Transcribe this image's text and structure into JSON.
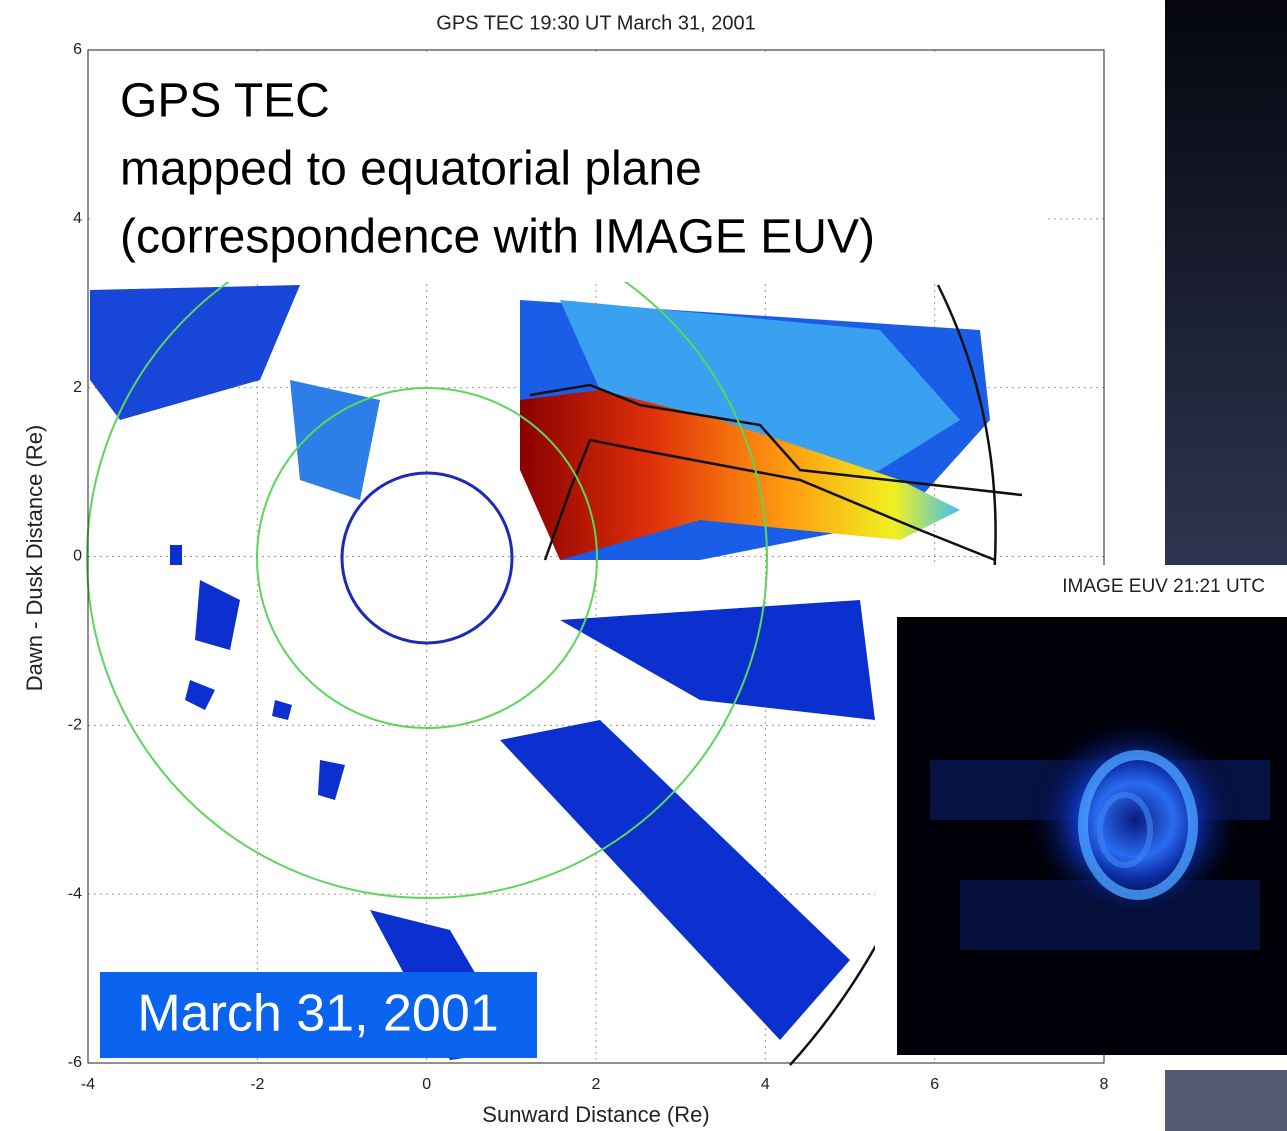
{
  "plot": {
    "title": "GPS TEC 19:30 UT  March 31, 2001",
    "xlabel": "Sunward Distance (Re)",
    "ylabel": "Dawn - Dusk Distance (Re)",
    "xticks": [
      "-4",
      "-2",
      "0",
      "2",
      "4",
      "6",
      "8"
    ],
    "yticks": [
      "6",
      "4",
      "2",
      "0",
      "-2",
      "-4",
      "-6"
    ]
  },
  "overlay": {
    "heading": "GPS TEC",
    "lines": [
      "mapped to equatorial plane",
      "(correspondence with IMAGE EUV)"
    ]
  },
  "date_badge": "March 31, 2001",
  "inset": {
    "title": "IMAGE EUV   21:21 UTC"
  }
}
